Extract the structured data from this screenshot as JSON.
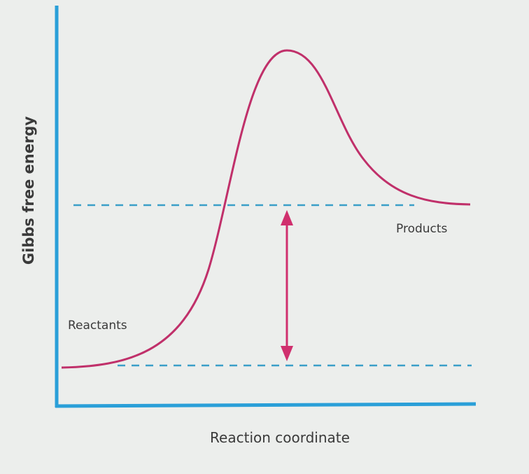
{
  "axes": {
    "y_label": "Gibbs free energy",
    "x_label": "Reaction coordinate"
  },
  "labels": {
    "reactants": "Reactants",
    "products": "Products"
  }
}
